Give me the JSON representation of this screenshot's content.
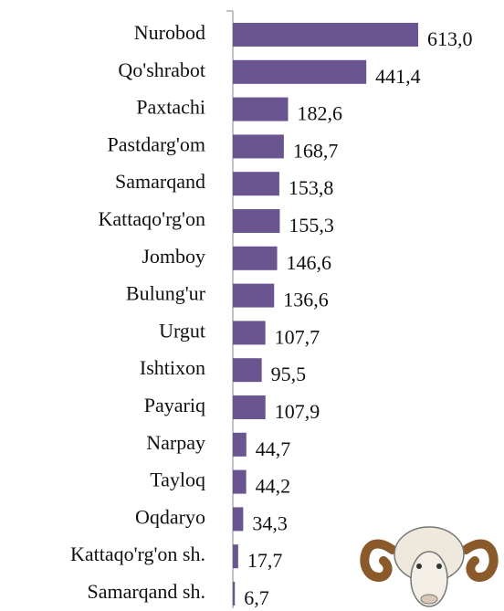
{
  "chart_data": {
    "type": "bar",
    "orientation": "horizontal",
    "categories": [
      "Nurobod",
      "Qo'shrabot",
      "Paxtachi",
      "Pastdarg'om",
      "Samarqand",
      "Kattaqo'rg'on",
      "Jomboy",
      "Bulung'ur",
      "Urgut",
      "Ishtixon",
      "Payariq",
      "Narpay",
      "Tayloq",
      "Oqdaryo",
      "Kattaqo'rg'on sh.",
      "Samarqand sh."
    ],
    "values": [
      613.0,
      441.4,
      182.6,
      168.7,
      153.8,
      155.3,
      146.6,
      136.6,
      107.7,
      95.5,
      107.9,
      44.7,
      44.2,
      34.3,
      17.7,
      6.7
    ],
    "value_labels": [
      "613,0",
      "441,4",
      "182,6",
      "168,7",
      "153,8",
      "155,3",
      "146,6",
      "136,6",
      "107,7",
      "95,5",
      "107,9",
      "44,7",
      "44,2",
      "34,3",
      "17,7",
      "6,7"
    ],
    "color": "#6a5590"
  }
}
